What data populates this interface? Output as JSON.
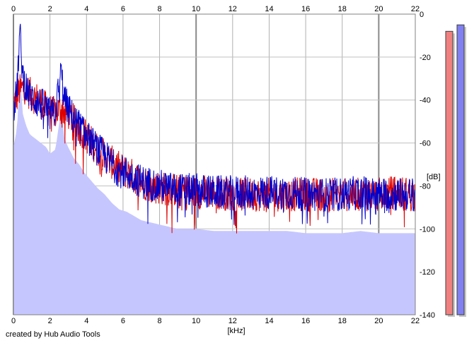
{
  "app": {
    "credit": "created by Hub Audio Tools"
  },
  "chart_data": {
    "type": "area",
    "xlabel": "[kHz]",
    "ylabel": "[dB]",
    "xlim": [
      0,
      22
    ],
    "ylim": [
      -140,
      0
    ],
    "x_ticks": [
      0,
      2,
      4,
      6,
      8,
      10,
      12,
      14,
      16,
      18,
      20,
      22
    ],
    "x_tick_labels": [
      "0",
      "2",
      "4",
      "6",
      "8",
      "10",
      "12",
      "14",
      "16",
      "18",
      "20",
      "22"
    ],
    "y_ticks": [
      0,
      -20,
      -40,
      -60,
      -80,
      -100,
      -120,
      -140
    ],
    "y_tick_labels": [
      "0",
      "-20",
      "-40",
      "-60",
      "-80",
      "-100",
      "-120",
      "-140"
    ],
    "grid": true,
    "area_fill": "#c6c6ff",
    "series": [
      {
        "color": "#0000cc",
        "x": [
          0,
          0.2,
          0.35,
          0.5,
          0.7,
          0.9,
          1.2,
          1.5,
          1.8,
          2.0,
          2.3,
          2.6,
          2.8,
          3.0,
          3.3,
          3.6,
          3.9,
          4.2,
          4.6,
          5.0,
          5.4,
          5.8,
          6.2,
          6.6,
          7.0,
          7.5,
          8.0,
          8.5,
          9.0,
          10,
          11,
          12,
          13,
          14,
          15,
          16,
          17,
          18,
          19,
          20,
          21,
          22
        ],
        "values": [
          -44,
          -35,
          -8,
          -28,
          -34,
          -38,
          -40,
          -42,
          -44,
          -47,
          -45,
          -27,
          -40,
          -44,
          -49,
          -52,
          -56,
          -59,
          -63,
          -66,
          -70,
          -73,
          -74,
          -76,
          -78,
          -79,
          -80,
          -81,
          -82,
          -82,
          -83,
          -83,
          -83,
          -83,
          -83,
          -84,
          -84,
          -84,
          -83,
          -84,
          -84,
          -84
        ]
      },
      {
        "color": "#dd0000",
        "x": [
          0,
          0.3,
          0.6,
          1.0,
          1.4,
          1.8,
          2.2,
          2.6,
          3.0,
          3.5,
          4.0,
          4.5,
          5.0,
          5.5,
          6.0,
          6.5,
          7.0,
          7.5,
          8.0,
          9.0,
          10,
          11,
          12,
          13,
          14,
          15,
          16,
          17,
          18,
          19,
          20,
          21,
          22
        ],
        "values": [
          -42,
          -36,
          -34,
          -38,
          -40,
          -44,
          -46,
          -44,
          -46,
          -52,
          -57,
          -62,
          -66,
          -70,
          -73,
          -75,
          -78,
          -80,
          -81,
          -82,
          -83,
          -83,
          -84,
          -84,
          -84,
          -84,
          -84,
          -84,
          -84,
          -84,
          -84,
          -83,
          -84
        ]
      }
    ],
    "level_meters": [
      {
        "color": "#f08080",
        "level_db": -8
      },
      {
        "color": "#8080f0",
        "level_db": -5
      }
    ]
  }
}
